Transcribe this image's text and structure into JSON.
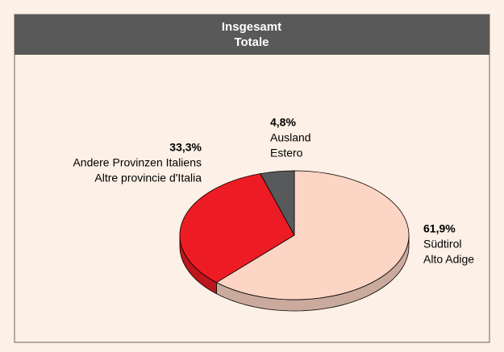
{
  "chart_data": {
    "type": "pie",
    "title": "Insgesamt",
    "subtitle": "Totale",
    "categories": [
      [
        "Südtirol",
        "Alto Adige"
      ],
      [
        "Andere Provinzen Italiens",
        "Altre provincie d'Italia"
      ],
      [
        "Ausland",
        "Estero"
      ]
    ],
    "values": [
      61.9,
      33.3,
      4.8
    ],
    "value_labels": [
      "61,9%",
      "33,3%",
      "4,8%"
    ],
    "colors": [
      "#fdd5c4",
      "#ed1c24",
      "#58595b"
    ]
  }
}
